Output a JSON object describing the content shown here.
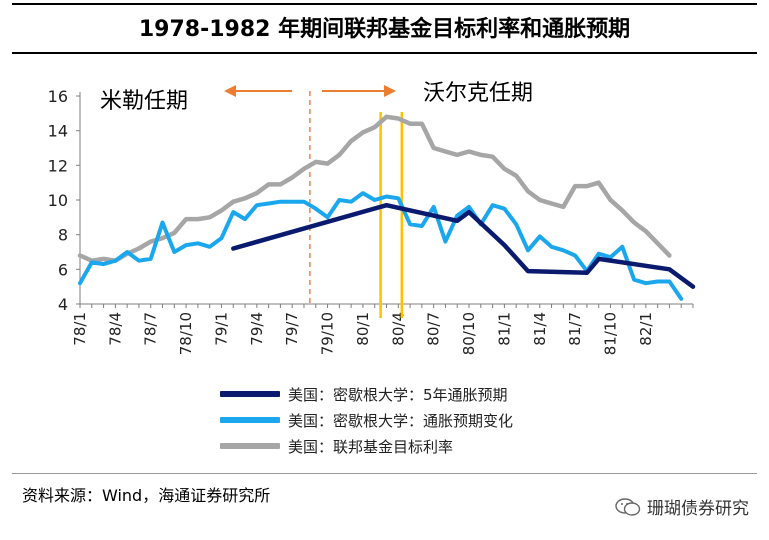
{
  "title": "1978-1982 年期间联邦基金目标利率和通胀预期",
  "source": "资料来源：Wind，海通证券研究所",
  "watermark": "珊瑚债券研究",
  "annotations": {
    "miller": "米勒任期",
    "volcker": "沃尔克任期"
  },
  "colors": {
    "inflation_5y": "#0a1a6e",
    "inflation_change": "#1aa7ee",
    "fed_funds": "#a6a6a6",
    "arrow": "#ed7d31",
    "marker": "#ffc000"
  },
  "chart_data": {
    "type": "line",
    "title": "1978-1982 年期间联邦基金目标利率和通胀预期",
    "xlabel": "",
    "ylabel": "",
    "ylim": [
      4,
      16
    ],
    "yticks": [
      4,
      6,
      8,
      10,
      12,
      14,
      16
    ],
    "x_ticks": [
      "78/1",
      "78/4",
      "78/7",
      "78/10",
      "79/1",
      "79/4",
      "79/7",
      "79/10",
      "80/1",
      "80/4",
      "80/7",
      "80/10",
      "81/1",
      "81/4",
      "81/7",
      "81/10",
      "82/1"
    ],
    "x_tick_index": [
      0,
      3,
      6,
      9,
      12,
      15,
      18,
      21,
      24,
      27,
      30,
      33,
      36,
      39,
      42,
      45,
      48
    ],
    "x_max_index": 52,
    "legend_position": "bottom",
    "vlines": [
      {
        "x_index": 19.5,
        "style": "dashed",
        "color_key": "arrow"
      },
      {
        "x_index": 25.5,
        "style": "solid",
        "color_key": "marker"
      },
      {
        "x_index": 27.3,
        "style": "solid",
        "color_key": "marker"
      }
    ],
    "series": [
      {
        "name": "美国：密歇根大学：5年通胀预期",
        "color_key": "inflation_5y",
        "points": [
          [
            13,
            7.2
          ],
          [
            26,
            9.7
          ],
          [
            32,
            8.8
          ],
          [
            33,
            9.3
          ],
          [
            36,
            7.4
          ],
          [
            38,
            5.9
          ],
          [
            43,
            5.8
          ],
          [
            44,
            6.6
          ],
          [
            50,
            6.0
          ],
          [
            52,
            5.0
          ]
        ]
      },
      {
        "name": "美国：密歇根大学：通胀预期变化",
        "color_key": "inflation_change",
        "points": [
          [
            0,
            5.2
          ],
          [
            1,
            6.4
          ],
          [
            2,
            6.3
          ],
          [
            3,
            6.5
          ],
          [
            4,
            7.0
          ],
          [
            5,
            6.5
          ],
          [
            6,
            6.6
          ],
          [
            7,
            8.7
          ],
          [
            8,
            7.0
          ],
          [
            9,
            7.4
          ],
          [
            10,
            7.5
          ],
          [
            11,
            7.3
          ],
          [
            12,
            7.8
          ],
          [
            13,
            9.3
          ],
          [
            14,
            8.9
          ],
          [
            15,
            9.7
          ],
          [
            16,
            9.8
          ],
          [
            17,
            9.9
          ],
          [
            18,
            9.9
          ],
          [
            19,
            9.9
          ],
          [
            20,
            9.5
          ],
          [
            21,
            9.0
          ],
          [
            22,
            10.0
          ],
          [
            23,
            9.9
          ],
          [
            24,
            10.4
          ],
          [
            25,
            10.0
          ],
          [
            26,
            10.2
          ],
          [
            27,
            10.1
          ],
          [
            28,
            8.6
          ],
          [
            29,
            8.5
          ],
          [
            30,
            9.6
          ],
          [
            31,
            7.6
          ],
          [
            32,
            9.1
          ],
          [
            33,
            9.6
          ],
          [
            34,
            8.6
          ],
          [
            35,
            9.7
          ],
          [
            36,
            9.5
          ],
          [
            37,
            8.6
          ],
          [
            38,
            7.1
          ],
          [
            39,
            7.9
          ],
          [
            40,
            7.3
          ],
          [
            41,
            7.1
          ],
          [
            42,
            6.8
          ],
          [
            43,
            5.9
          ],
          [
            44,
            6.9
          ],
          [
            45,
            6.7
          ],
          [
            46,
            7.3
          ],
          [
            47,
            5.4
          ],
          [
            48,
            5.2
          ],
          [
            49,
            5.3
          ],
          [
            50,
            5.3
          ],
          [
            51,
            4.3
          ]
        ]
      },
      {
        "name": "美国：联邦基金目标利率",
        "color_key": "fed_funds",
        "points": [
          [
            0,
            6.8
          ],
          [
            1,
            6.5
          ],
          [
            2,
            6.6
          ],
          [
            3,
            6.5
          ],
          [
            4,
            6.9
          ],
          [
            5,
            7.2
          ],
          [
            6,
            7.6
          ],
          [
            7,
            7.8
          ],
          [
            8,
            8.1
          ],
          [
            9,
            8.9
          ],
          [
            10,
            8.9
          ],
          [
            11,
            9.0
          ],
          [
            12,
            9.4
          ],
          [
            13,
            9.9
          ],
          [
            14,
            10.1
          ],
          [
            15,
            10.4
          ],
          [
            16,
            10.9
          ],
          [
            17,
            10.9
          ],
          [
            18,
            11.3
          ],
          [
            19,
            11.8
          ],
          [
            20,
            12.2
          ],
          [
            21,
            12.1
          ],
          [
            22,
            12.6
          ],
          [
            23,
            13.4
          ],
          [
            24,
            13.9
          ],
          [
            25,
            14.2
          ],
          [
            26,
            14.8
          ],
          [
            27,
            14.7
          ],
          [
            28,
            14.4
          ],
          [
            29,
            14.4
          ],
          [
            30,
            13.0
          ],
          [
            31,
            12.8
          ],
          [
            32,
            12.6
          ],
          [
            33,
            12.8
          ],
          [
            34,
            12.6
          ],
          [
            35,
            12.5
          ],
          [
            36,
            11.8
          ],
          [
            37,
            11.4
          ],
          [
            38,
            10.5
          ],
          [
            39,
            10.0
          ],
          [
            40,
            9.8
          ],
          [
            41,
            9.6
          ],
          [
            42,
            10.8
          ],
          [
            43,
            10.8
          ],
          [
            44,
            11.0
          ],
          [
            45,
            10.0
          ],
          [
            46,
            9.4
          ],
          [
            47,
            8.7
          ],
          [
            48,
            8.2
          ],
          [
            49,
            7.5
          ],
          [
            50,
            6.8
          ]
        ]
      }
    ]
  }
}
